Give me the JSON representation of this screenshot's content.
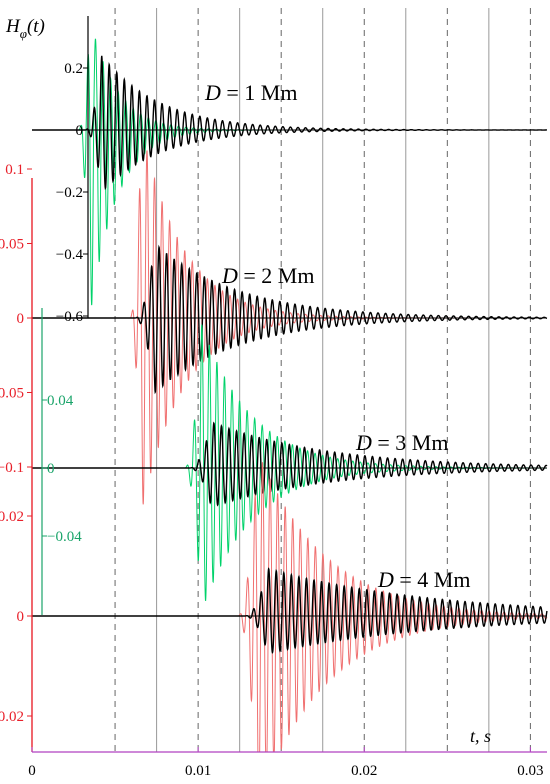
{
  "chart_data": {
    "type": "line",
    "ylabel": "Hφ(t)",
    "xlabel": "t, s",
    "xlim": [
      0,
      0.031
    ],
    "x_ticks": [
      "0",
      "0.01",
      "0.02",
      "0.03"
    ],
    "x_tick_values": [
      0,
      0.01,
      0.02,
      0.03
    ],
    "grid_solid_x": [
      0.0075,
      0.0125,
      0.0175,
      0.0225,
      0.0275
    ],
    "grid_dashed_x": [
      0.005,
      0.01,
      0.015,
      0.02,
      0.025,
      0.03
    ],
    "panels": [
      {
        "label": "D = 1 Mm",
        "axis_color": "#000000",
        "ticks": [
          "0.2",
          "0",
          "−0.2",
          "−0.4",
          "−0.6"
        ],
        "tick_values": [
          0.2,
          0,
          -0.2,
          -0.4,
          -0.6
        ],
        "envelope_color": "#00d26a",
        "signal_color": "#000000",
        "envelope": {
          "onset": 0.0028,
          "peak": 0.0035,
          "pos_amp": 0.36,
          "neg_amp": -0.6,
          "decay": 0.0016
        },
        "signal": {
          "onset": 0.0032,
          "peak": 0.0042,
          "pos_amp": 0.24,
          "neg_amp": -0.2,
          "decay": 0.0035
        }
      },
      {
        "label": "D = 2 Mm",
        "axis_color": "#e8202a",
        "ticks": [
          "0.1",
          "0.05",
          "0",
          "−0.05",
          "−0.1"
        ],
        "tick_values": [
          0.1,
          0.05,
          0,
          -0.05,
          -0.1
        ],
        "envelope_color": "#f07070",
        "signal_color": "#000000",
        "envelope": {
          "onset": 0.0059,
          "peak": 0.0066,
          "pos_amp": 0.128,
          "neg_amp": -0.13,
          "decay": 0.0025
        },
        "signal": {
          "onset": 0.0062,
          "peak": 0.0074,
          "pos_amp": 0.05,
          "neg_amp": -0.05,
          "decay": 0.005
        }
      },
      {
        "label": "D = 3 Mm",
        "axis_color": "#1aa46a",
        "ticks": [
          "0.04",
          "0",
          "−0.04"
        ],
        "tick_values": [
          0.04,
          0,
          -0.04
        ],
        "envelope_color": "#00d26a",
        "signal_color": "#000000",
        "envelope": {
          "onset": 0.0092,
          "peak": 0.0102,
          "pos_amp": 0.085,
          "neg_amp": -0.085,
          "decay": 0.003
        },
        "signal": {
          "onset": 0.0095,
          "peak": 0.0108,
          "pos_amp": 0.027,
          "neg_amp": -0.023,
          "decay": 0.007
        }
      },
      {
        "label": "D = 4 Mm",
        "axis_color": "#e8202a",
        "ticks": [
          "0.02",
          "0",
          "−0.02"
        ],
        "tick_values": [
          0.02,
          0,
          -0.02
        ],
        "envelope_color": "#f07070",
        "signal_color": "#000000",
        "envelope": {
          "onset": 0.0124,
          "peak": 0.0136,
          "pos_amp": 0.033,
          "neg_amp": -0.038,
          "decay": 0.004
        },
        "signal": {
          "onset": 0.0128,
          "peak": 0.0142,
          "pos_amp": 0.0095,
          "neg_amp": -0.0075,
          "decay": 0.01
        }
      }
    ]
  }
}
